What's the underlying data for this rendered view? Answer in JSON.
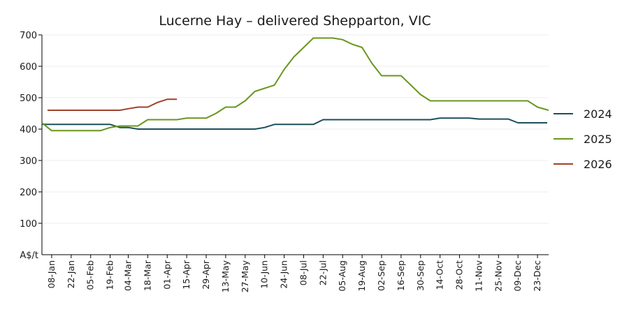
{
  "chart_data": {
    "type": "line",
    "title": "Lucerne Hay – delivered Shepparton, VIC",
    "ylabel": "A$/t",
    "ylim": [
      0,
      700
    ],
    "yticks": [
      100,
      200,
      300,
      400,
      500,
      600,
      700
    ],
    "grid": "horizontal",
    "legend_position": "right",
    "x_domain": [
      "01-Jan",
      "31-Dec"
    ],
    "xtick_labels": [
      "08-Jan",
      "22-Jan",
      "05-Feb",
      "19-Feb",
      "04-Mar",
      "18-Mar",
      "01-Apr",
      "15-Apr",
      "29-Apr",
      "13-May",
      "27-May",
      "10-Jun",
      "24-Jun",
      "08-Jul",
      "22-Jul",
      "05-Aug",
      "19-Aug",
      "02-Sep",
      "16-Sep",
      "30-Sep",
      "14-Oct",
      "28-Oct",
      "11-Nov",
      "25-Nov",
      "09-Dec",
      "23-Dec"
    ],
    "series": [
      {
        "name": "2024",
        "color": "#1b4f5c",
        "points": [
          [
            "01-Jan",
            415
          ],
          [
            "08-Jan",
            415
          ],
          [
            "22-Jan",
            415
          ],
          [
            "05-Feb",
            415
          ],
          [
            "19-Feb",
            415
          ],
          [
            "26-Feb",
            405
          ],
          [
            "04-Mar",
            405
          ],
          [
            "11-Mar",
            400
          ],
          [
            "18-Mar",
            400
          ],
          [
            "01-Apr",
            400
          ],
          [
            "15-Apr",
            400
          ],
          [
            "29-Apr",
            400
          ],
          [
            "13-May",
            400
          ],
          [
            "27-May",
            400
          ],
          [
            "03-Jun",
            400
          ],
          [
            "10-Jun",
            405
          ],
          [
            "17-Jun",
            415
          ],
          [
            "24-Jun",
            415
          ],
          [
            "08-Jul",
            415
          ],
          [
            "15-Jul",
            415
          ],
          [
            "22-Jul",
            430
          ],
          [
            "05-Aug",
            430
          ],
          [
            "19-Aug",
            430
          ],
          [
            "02-Sep",
            430
          ],
          [
            "16-Sep",
            430
          ],
          [
            "30-Sep",
            430
          ],
          [
            "07-Oct",
            430
          ],
          [
            "14-Oct",
            435
          ],
          [
            "28-Oct",
            435
          ],
          [
            "04-Nov",
            435
          ],
          [
            "11-Nov",
            432
          ],
          [
            "25-Nov",
            432
          ],
          [
            "02-Dec",
            432
          ],
          [
            "09-Dec",
            420
          ],
          [
            "23-Dec",
            420
          ],
          [
            "30-Dec",
            420
          ]
        ]
      },
      {
        "name": "2025",
        "color": "#6a961f",
        "points": [
          [
            "01-Jan",
            420
          ],
          [
            "08-Jan",
            395
          ],
          [
            "22-Jan",
            395
          ],
          [
            "05-Feb",
            395
          ],
          [
            "12-Feb",
            395
          ],
          [
            "19-Feb",
            405
          ],
          [
            "26-Feb",
            410
          ],
          [
            "04-Mar",
            410
          ],
          [
            "11-Mar",
            410
          ],
          [
            "18-Mar",
            430
          ],
          [
            "25-Mar",
            430
          ],
          [
            "01-Apr",
            430
          ],
          [
            "08-Apr",
            430
          ],
          [
            "15-Apr",
            435
          ],
          [
            "29-Apr",
            435
          ],
          [
            "06-May",
            450
          ],
          [
            "13-May",
            470
          ],
          [
            "20-May",
            470
          ],
          [
            "27-May",
            490
          ],
          [
            "03-Jun",
            520
          ],
          [
            "10-Jun",
            530
          ],
          [
            "17-Jun",
            540
          ],
          [
            "24-Jun",
            590
          ],
          [
            "01-Jul",
            630
          ],
          [
            "08-Jul",
            660
          ],
          [
            "15-Jul",
            690
          ],
          [
            "22-Jul",
            690
          ],
          [
            "29-Jul",
            690
          ],
          [
            "05-Aug",
            685
          ],
          [
            "12-Aug",
            670
          ],
          [
            "19-Aug",
            660
          ],
          [
            "26-Aug",
            610
          ],
          [
            "02-Sep",
            570
          ],
          [
            "09-Sep",
            570
          ],
          [
            "16-Sep",
            570
          ],
          [
            "23-Sep",
            540
          ],
          [
            "30-Sep",
            510
          ],
          [
            "07-Oct",
            490
          ],
          [
            "14-Oct",
            490
          ],
          [
            "28-Oct",
            490
          ],
          [
            "11-Nov",
            490
          ],
          [
            "25-Nov",
            490
          ],
          [
            "09-Dec",
            490
          ],
          [
            "16-Dec",
            490
          ],
          [
            "23-Dec",
            470
          ],
          [
            "31-Dec",
            460
          ]
        ]
      },
      {
        "name": "2026",
        "color": "#a0422a",
        "points": [
          [
            "05-Jan",
            460
          ],
          [
            "08-Jan",
            460
          ],
          [
            "22-Jan",
            460
          ],
          [
            "05-Feb",
            460
          ],
          [
            "19-Feb",
            460
          ],
          [
            "26-Feb",
            460
          ],
          [
            "04-Mar",
            465
          ],
          [
            "11-Mar",
            470
          ],
          [
            "18-Mar",
            470
          ],
          [
            "25-Mar",
            485
          ],
          [
            "01-Apr",
            495
          ],
          [
            "08-Apr",
            495
          ]
        ]
      }
    ]
  }
}
